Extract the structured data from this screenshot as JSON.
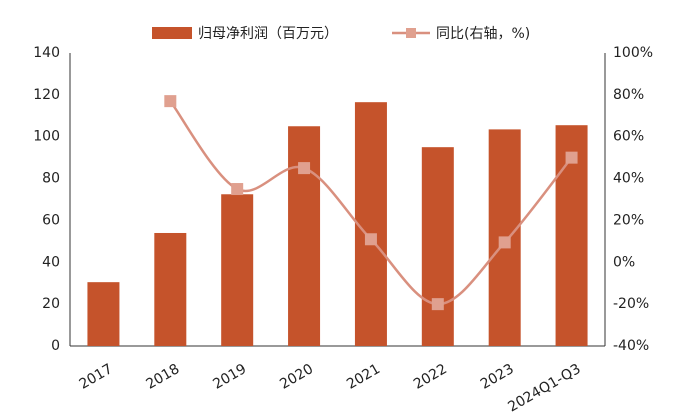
{
  "chart_data": {
    "type": "bar",
    "categories": [
      "2017",
      "2018",
      "2019",
      "2020",
      "2021",
      "2022",
      "2023",
      "2024Q1-Q3"
    ],
    "series": [
      {
        "name": "归母净利润（百万元）",
        "type": "bar",
        "color": "#c5532b",
        "values": [
          30.5,
          54,
          72.5,
          105,
          116.5,
          95,
          103.5,
          105.5
        ]
      },
      {
        "name": "同比(右轴，%)",
        "type": "line",
        "axis": "y2",
        "color": "#d9907f",
        "values": [
          null,
          77,
          35,
          45,
          11,
          -20,
          9.5,
          50
        ]
      }
    ],
    "ylim": [
      0,
      140
    ],
    "yticks": [
      0,
      20,
      40,
      60,
      80,
      100,
      120,
      140
    ],
    "y2lim": [
      -40,
      100
    ],
    "y2ticks": [
      {
        "value": -40,
        "label": "-40%"
      },
      {
        "value": -20,
        "label": "-20%"
      },
      {
        "value": 0,
        "label": "0%"
      },
      {
        "value": 20,
        "label": "20%"
      },
      {
        "value": 40,
        "label": "40%"
      },
      {
        "value": 60,
        "label": "60%"
      },
      {
        "value": 80,
        "label": "80%"
      },
      {
        "value": 100,
        "label": "100%"
      }
    ],
    "grid": false
  }
}
